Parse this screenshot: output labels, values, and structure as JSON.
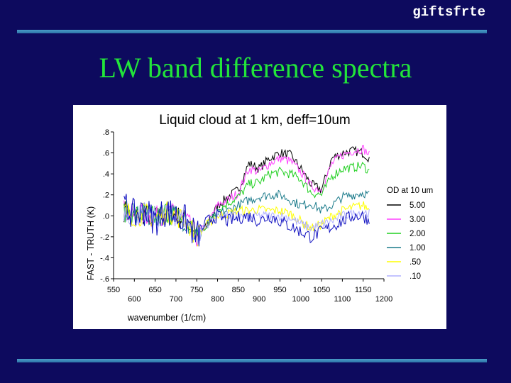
{
  "header": {
    "label": "giftsfrte"
  },
  "slide": {
    "title": "LW band difference spectra"
  },
  "chart_data": {
    "type": "line",
    "title": "Liquid cloud at 1 km, deff=10um",
    "xlabel": "wavenumber (1/cm)",
    "ylabel": "FAST - TRUTH (K)",
    "xlim": [
      550,
      1200
    ],
    "ylim": [
      -0.6,
      0.8
    ],
    "xticks_lower": [
      "550",
      "650",
      "750",
      "850",
      "950",
      "1050",
      "1150"
    ],
    "xticks_upper": [
      "600",
      "700",
      "800",
      "900",
      "1000",
      "1100",
      "1200"
    ],
    "yticks": [
      ".8",
      ".6",
      ".4",
      ".2",
      ".0",
      "-.2",
      "-.4",
      "-.6"
    ],
    "ytick_values": [
      0.8,
      0.6,
      0.4,
      0.2,
      0.0,
      -0.2,
      -0.4,
      -0.6
    ],
    "legend_title": "OD at 10 um",
    "legend_placement": "right",
    "series": [
      {
        "name": "5.00",
        "color": "#000000",
        "x": [
          575,
          600,
          625,
          650,
          675,
          700,
          725,
          750,
          775,
          800,
          825,
          850,
          875,
          900,
          925,
          950,
          975,
          1000,
          1025,
          1050,
          1075,
          1100,
          1125,
          1150,
          1165
        ],
        "y": [
          0.05,
          0.0,
          0.02,
          -0.02,
          0.04,
          0.0,
          -0.05,
          -0.2,
          -0.1,
          0.1,
          0.18,
          0.25,
          0.5,
          0.45,
          0.55,
          0.6,
          0.58,
          0.45,
          0.3,
          0.25,
          0.55,
          0.6,
          0.62,
          0.6,
          0.55
        ]
      },
      {
        "name": "3.00",
        "color": "#ff40ff",
        "x": [
          575,
          600,
          625,
          650,
          675,
          700,
          725,
          750,
          775,
          800,
          825,
          850,
          875,
          900,
          925,
          950,
          975,
          1000,
          1025,
          1050,
          1075,
          1100,
          1125,
          1150,
          1165
        ],
        "y": [
          0.05,
          0.0,
          0.02,
          -0.02,
          0.04,
          0.0,
          -0.05,
          -0.2,
          -0.08,
          0.1,
          0.15,
          0.22,
          0.45,
          0.42,
          0.5,
          0.55,
          0.52,
          0.42,
          0.28,
          0.25,
          0.5,
          0.58,
          0.62,
          0.64,
          0.58
        ]
      },
      {
        "name": "2.00",
        "color": "#20d020",
        "x": [
          575,
          600,
          625,
          650,
          675,
          700,
          725,
          750,
          775,
          800,
          825,
          850,
          875,
          900,
          925,
          950,
          975,
          1000,
          1025,
          1050,
          1075,
          1100,
          1125,
          1150,
          1165
        ],
        "y": [
          0.05,
          0.0,
          0.02,
          -0.02,
          0.04,
          0.0,
          -0.05,
          -0.2,
          -0.08,
          0.05,
          0.12,
          0.18,
          0.3,
          0.32,
          0.4,
          0.42,
          0.4,
          0.35,
          0.22,
          0.2,
          0.38,
          0.45,
          0.46,
          0.48,
          0.42
        ]
      },
      {
        "name": "1.00",
        "color": "#1a7a8a",
        "x": [
          575,
          600,
          625,
          650,
          675,
          700,
          725,
          750,
          775,
          800,
          825,
          850,
          875,
          900,
          925,
          950,
          975,
          1000,
          1025,
          1050,
          1075,
          1100,
          1125,
          1150,
          1165
        ],
        "y": [
          0.05,
          0.0,
          0.02,
          -0.02,
          0.04,
          0.0,
          -0.05,
          -0.2,
          -0.08,
          0.02,
          0.05,
          0.1,
          0.15,
          0.18,
          0.2,
          0.2,
          0.15,
          0.1,
          0.12,
          0.05,
          0.1,
          0.18,
          0.2,
          0.22,
          0.2
        ]
      },
      {
        "name": ".50",
        "color": "#ffff00",
        "x": [
          575,
          600,
          625,
          650,
          675,
          700,
          725,
          750,
          775,
          800,
          825,
          850,
          875,
          900,
          925,
          950,
          975,
          1000,
          1025,
          1050,
          1075,
          1100,
          1125,
          1150,
          1165
        ],
        "y": [
          0.05,
          0.0,
          0.02,
          -0.02,
          0.04,
          0.0,
          -0.05,
          -0.2,
          -0.08,
          0.0,
          0.02,
          0.05,
          0.05,
          0.06,
          0.05,
          0.05,
          0.02,
          -0.05,
          -0.12,
          -0.08,
          0.0,
          0.05,
          0.08,
          0.1,
          0.06
        ]
      },
      {
        "name": ".10",
        "color": "#b0b0ff",
        "x": [
          575,
          600,
          625,
          650,
          675,
          700,
          725,
          750,
          775,
          800,
          825,
          850,
          875,
          900,
          925,
          950,
          975,
          1000,
          1025,
          1050,
          1075,
          1100,
          1125,
          1150,
          1165
        ],
        "y": [
          0.05,
          0.0,
          0.02,
          -0.02,
          0.04,
          0.0,
          -0.05,
          -0.2,
          -0.08,
          0.0,
          0.0,
          0.0,
          -0.02,
          0.0,
          0.0,
          0.0,
          -0.02,
          -0.08,
          -0.12,
          -0.08,
          -0.05,
          0.0,
          0.02,
          0.04,
          0.02
        ]
      },
      {
        "name": "",
        "color": "#1010c0",
        "x": [
          575,
          600,
          625,
          650,
          675,
          700,
          725,
          750,
          775,
          800,
          825,
          850,
          875,
          900,
          925,
          950,
          975,
          1000,
          1025,
          1050,
          1075,
          1100,
          1125,
          1150,
          1165
        ],
        "y": [
          0.1,
          0.0,
          0.05,
          -0.05,
          0.05,
          0.0,
          -0.05,
          -0.2,
          -0.05,
          0.0,
          -0.05,
          -0.02,
          0.0,
          -0.05,
          0.0,
          -0.05,
          -0.1,
          -0.15,
          -0.2,
          -0.15,
          -0.1,
          -0.05,
          0.0,
          0.0,
          -0.05
        ]
      }
    ]
  }
}
